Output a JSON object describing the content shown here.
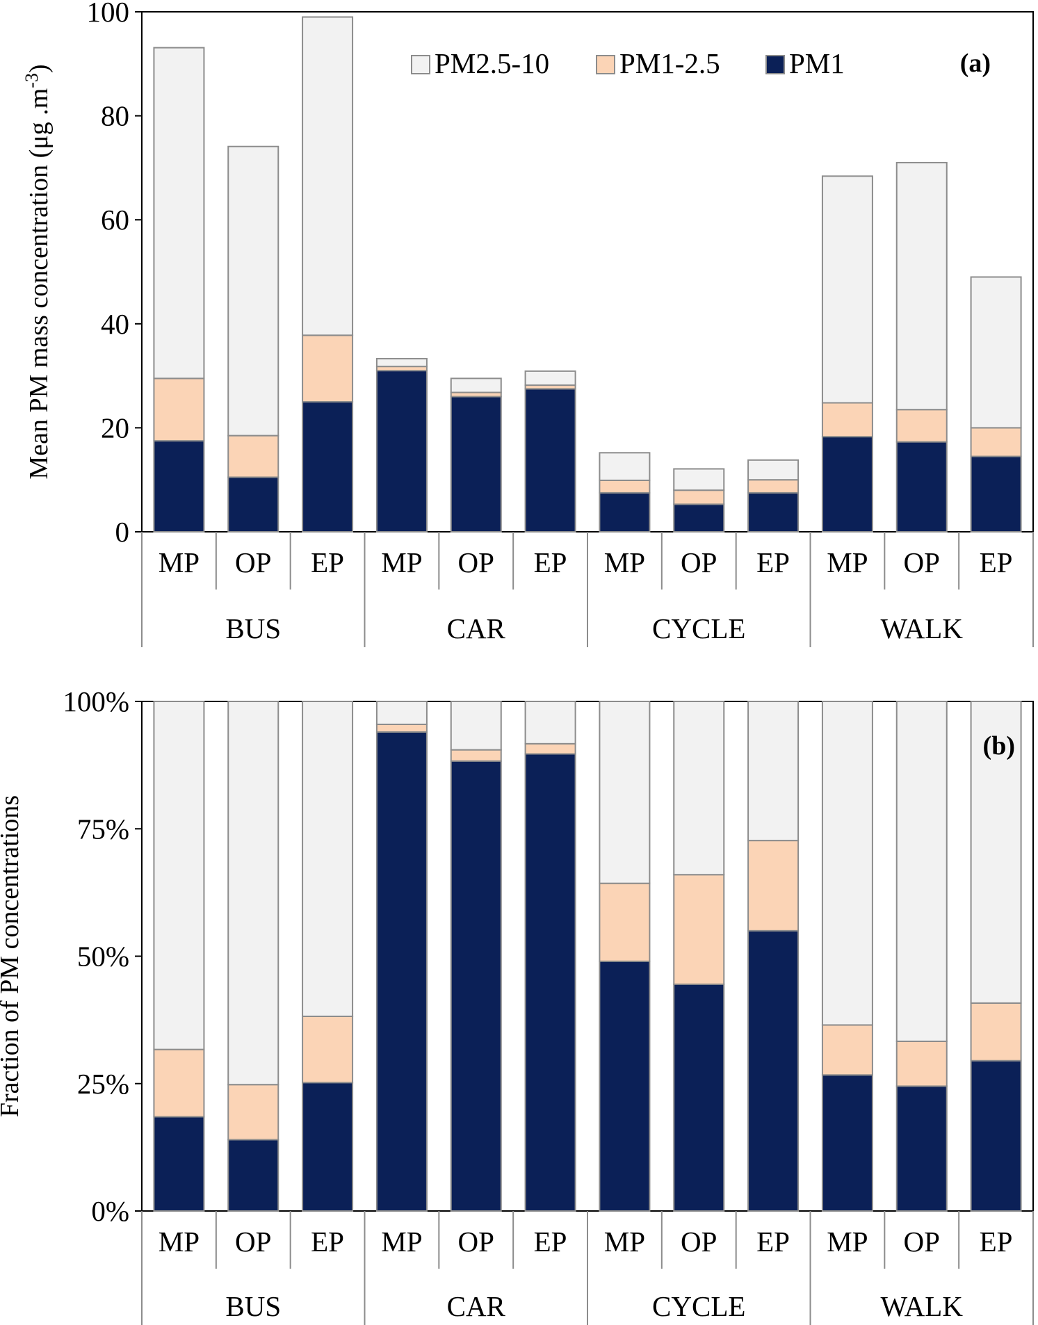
{
  "colors": {
    "PM1": "#0b2057",
    "PM1-2.5": "#fbd4b6",
    "PM2.5-10": "#f2f2f2",
    "edge": "#8c8c8c",
    "axis": "#000000"
  },
  "chart_data": [
    {
      "type": "bar",
      "stacked": true,
      "panel_label": "(a)",
      "ylabel": "Mean PM mass concentration (μg .m",
      "ylabel_sup": "-3",
      "ylabel_close": ")",
      "ylim": [
        0,
        100
      ],
      "yticks": [
        0,
        20,
        40,
        60,
        80,
        100
      ],
      "ytick_labels": [
        "0",
        "20",
        "40",
        "60",
        "80",
        "100"
      ],
      "legend": [
        "PM2.5-10",
        "PM1-2.5",
        "PM1"
      ],
      "legend_position": "top",
      "groups": [
        "BUS",
        "CAR",
        "CYCLE",
        "WALK"
      ],
      "subcategories": [
        "MP",
        "OP",
        "EP",
        "MP",
        "OP",
        "EP",
        "MP",
        "OP",
        "EP",
        "MP",
        "OP",
        "EP"
      ],
      "series": [
        {
          "name": "PM1",
          "values": [
            17.5,
            10.5,
            25.0,
            31.0,
            26.0,
            27.5,
            7.5,
            5.3,
            7.5,
            18.3,
            17.3,
            14.5
          ]
        },
        {
          "name": "PM1-2.5",
          "values": [
            12.0,
            8.0,
            12.8,
            0.8,
            0.8,
            0.7,
            2.4,
            2.7,
            2.5,
            6.5,
            6.2,
            5.5
          ]
        },
        {
          "name": "PM2.5-10",
          "values": [
            63.6,
            55.6,
            61.2,
            1.5,
            2.7,
            2.7,
            5.3,
            4.1,
            3.8,
            43.6,
            47.5,
            29.0
          ]
        }
      ]
    },
    {
      "type": "bar",
      "stacked": true,
      "percent": true,
      "panel_label": "(b)",
      "ylabel": "Fraction of PM concentrations",
      "ylim": [
        0,
        100
      ],
      "yticks": [
        0,
        25,
        50,
        75,
        100
      ],
      "ytick_labels": [
        "0%",
        "25%",
        "50%",
        "75%",
        "100%"
      ],
      "groups": [
        "BUS",
        "CAR",
        "CYCLE",
        "WALK"
      ],
      "subcategories": [
        "MP",
        "OP",
        "EP",
        "MP",
        "OP",
        "EP",
        "MP",
        "OP",
        "EP",
        "MP",
        "OP",
        "EP"
      ],
      "series": [
        {
          "name": "PM1",
          "values": [
            18.5,
            14.0,
            25.2,
            94.0,
            88.3,
            89.7,
            49.0,
            44.5,
            55.0,
            26.7,
            24.5,
            29.5
          ]
        },
        {
          "name": "PM1-2.5",
          "values": [
            13.2,
            10.8,
            13.0,
            1.5,
            2.2,
            2.0,
            15.3,
            21.5,
            17.7,
            9.8,
            8.8,
            11.3
          ]
        },
        {
          "name": "PM2.5-10",
          "values": [
            68.3,
            75.2,
            61.8,
            4.5,
            9.5,
            8.3,
            35.7,
            34.0,
            27.3,
            63.5,
            66.7,
            59.2
          ]
        }
      ]
    }
  ]
}
